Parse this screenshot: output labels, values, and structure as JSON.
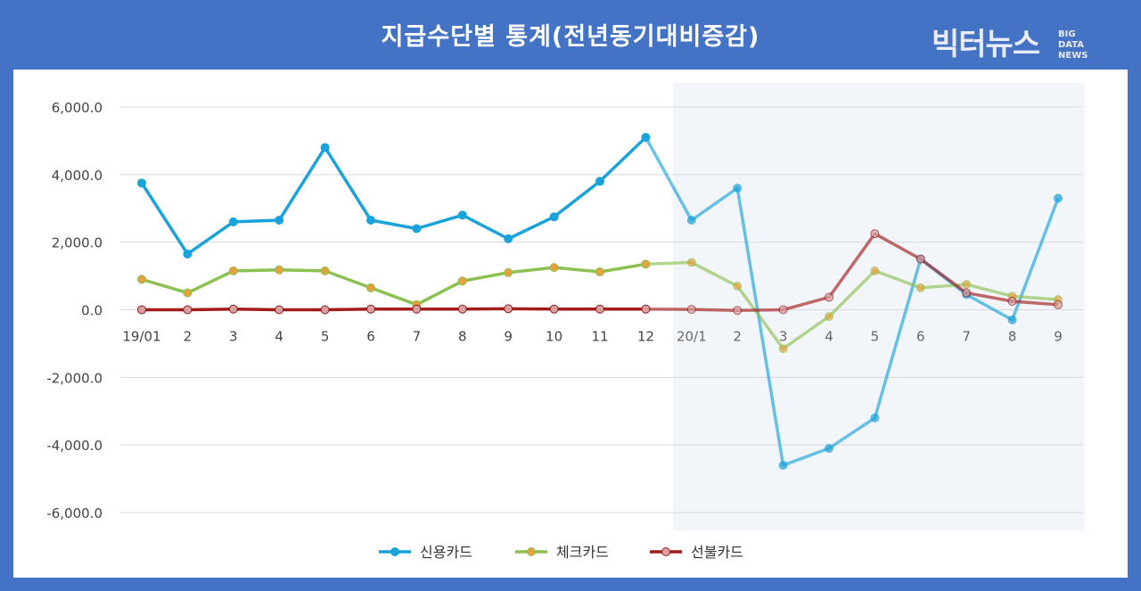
{
  "header": {
    "title": "지급수단별 통계(전년동기대비증감)",
    "logo_main": "빅터뉴스",
    "logo_sub": [
      "BIG",
      "DATA",
      "NEWS"
    ]
  },
  "colors": {
    "background": "#4472c4",
    "panel": "#ffffff",
    "highlight_band": "#f2f6fa",
    "grid": "#d9d9d9",
    "credit": "#1aa3db",
    "check": "#8cc152",
    "check_marker": "#e6a23c",
    "prepaid": "#a31c1c",
    "prepaid_marker": "#d9a0a0"
  },
  "chart_data": {
    "type": "line",
    "title": "지급수단별 통계(전년동기대비증감)",
    "xlabel": "",
    "ylabel": "",
    "ylim": [
      -6000,
      6000
    ],
    "yticks": [
      6000,
      4000,
      2000,
      0,
      -2000,
      -4000,
      -6000
    ],
    "ytick_labels": [
      "6,000.0",
      "4,000.0",
      "2,000.0",
      "0.0",
      "-2,000.0",
      "-4,000.0",
      "-6,000.0"
    ],
    "categories": [
      "19/01",
      "2",
      "3",
      "4",
      "5",
      "6",
      "7",
      "8",
      "9",
      "10",
      "11",
      "12",
      "20/1",
      "2",
      "3",
      "4",
      "5",
      "6",
      "7",
      "8",
      "9"
    ],
    "highlight_from_index": 12,
    "grid": true,
    "legend_position": "bottom",
    "series": [
      {
        "name": "신용카드",
        "color_key": "credit",
        "values": [
          3750,
          1650,
          2600,
          2650,
          4800,
          2650,
          2400,
          2800,
          2100,
          2750,
          3800,
          5100,
          2650,
          3600,
          -4600,
          -4100,
          -3200,
          1500,
          450,
          -300,
          3300
        ]
      },
      {
        "name": "체크카드",
        "color_key": "check",
        "values": [
          900,
          500,
          1150,
          1180,
          1150,
          650,
          150,
          850,
          1100,
          1250,
          1120,
          1350,
          1400,
          700,
          -1150,
          -200,
          1150,
          650,
          750,
          400,
          300
        ]
      },
      {
        "name": "선불카드",
        "color_key": "prepaid",
        "values": [
          0,
          0,
          20,
          0,
          0,
          20,
          20,
          20,
          30,
          20,
          20,
          20,
          10,
          -20,
          0,
          370,
          2250,
          1500,
          500,
          250,
          150
        ]
      }
    ]
  }
}
